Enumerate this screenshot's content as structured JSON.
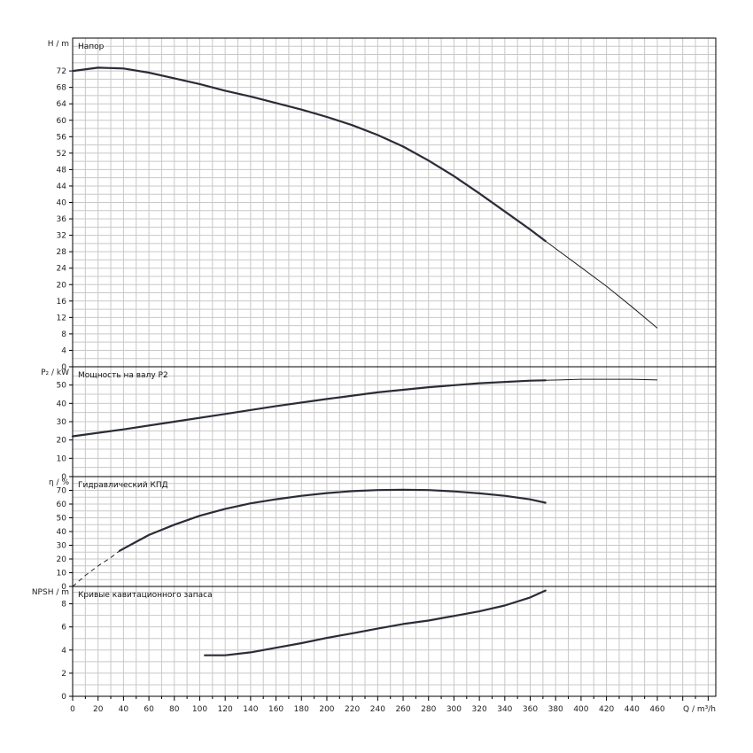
{
  "chart_data": [
    {
      "type": "line",
      "title": "Напор",
      "ylabel": "H / m",
      "ylim": [
        0,
        80
      ],
      "yticks": [
        0,
        4,
        8,
        12,
        16,
        20,
        24,
        28,
        32,
        36,
        40,
        44,
        48,
        52,
        56,
        60,
        64,
        68,
        72
      ],
      "series": [
        {
          "solid_x": [
            0,
            20,
            40,
            60,
            80,
            100,
            120,
            140,
            160,
            180,
            200,
            220,
            240,
            260,
            280,
            300,
            320,
            340,
            360,
            372
          ],
          "solid_y": [
            72,
            72.8,
            72.6,
            71.6,
            70.2,
            68.8,
            67.2,
            65.8,
            64.2,
            62.6,
            60.8,
            58.8,
            56.4,
            53.6,
            50.2,
            46.4,
            42.2,
            37.8,
            33.4,
            30.6
          ],
          "thin_x": [
            372,
            400,
            420,
            440,
            460
          ],
          "thin_y": [
            30.6,
            24.2,
            19.6,
            14.6,
            9.4
          ]
        }
      ]
    },
    {
      "type": "line",
      "title": "Мощность на валу P2",
      "ylabel": "P₂ / kW",
      "ylim": [
        0,
        60
      ],
      "yticks": [
        0,
        10,
        20,
        30,
        40,
        50
      ],
      "series": [
        {
          "solid_x": [
            0,
            40,
            80,
            120,
            160,
            200,
            240,
            280,
            320,
            360,
            372
          ],
          "solid_y": [
            22,
            25.8,
            30,
            34.2,
            38.5,
            42.4,
            46,
            48.8,
            51,
            52.4,
            52.6
          ],
          "thin_x": [
            372,
            400,
            440,
            460
          ],
          "thin_y": [
            52.6,
            53.2,
            53.2,
            52.8
          ]
        }
      ]
    },
    {
      "type": "line",
      "title": "Гидравлический КПД",
      "ylabel": "η / %",
      "ylim": [
        0,
        80
      ],
      "yticks": [
        0,
        10,
        20,
        30,
        40,
        50,
        60,
        70
      ],
      "series": [
        {
          "dashed_x": [
            0,
            10,
            20,
            30,
            37
          ],
          "dashed_y": [
            0,
            8,
            15,
            21,
            26
          ],
          "solid_x": [
            37,
            50,
            60,
            80,
            100,
            120,
            140,
            160,
            180,
            200,
            220,
            240,
            260,
            280,
            300,
            320,
            340,
            360,
            372
          ],
          "solid_y": [
            26,
            32.5,
            37.5,
            45,
            51.5,
            56.5,
            60.5,
            63.5,
            66,
            68,
            69.4,
            70.2,
            70.4,
            70.2,
            69.2,
            67.8,
            66,
            63.4,
            61
          ]
        }
      ]
    },
    {
      "type": "line",
      "title": "Кривые кавитационного запаса",
      "ylabel": "NPSH / m",
      "ylim": [
        0,
        9.5
      ],
      "yticks": [
        0,
        2,
        4,
        6,
        8
      ],
      "xlabel": "Q / m³/h",
      "xticks": [
        0,
        20,
        40,
        60,
        80,
        100,
        120,
        140,
        160,
        180,
        200,
        220,
        240,
        260,
        280,
        300,
        320,
        340,
        360,
        380,
        400,
        420,
        440,
        460
      ],
      "xlim": [
        0,
        506
      ],
      "series": [
        {
          "solid_x": [
            104,
            120,
            140,
            160,
            180,
            200,
            220,
            240,
            260,
            280,
            300,
            320,
            340,
            360,
            372
          ],
          "solid_y": [
            3.55,
            3.55,
            3.8,
            4.2,
            4.6,
            5.05,
            5.45,
            5.85,
            6.25,
            6.55,
            6.95,
            7.35,
            7.85,
            8.55,
            9.15
          ]
        }
      ]
    }
  ]
}
